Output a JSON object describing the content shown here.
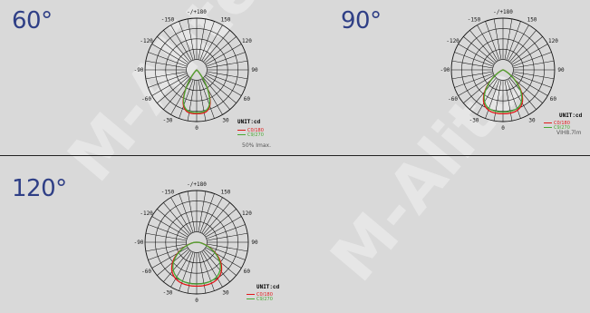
{
  "watermark": "M-Alite",
  "diagrams": [
    {
      "beam": "60°",
      "angle_labels": [
        "-/+180",
        "150",
        "120",
        "90",
        "60",
        "30",
        "0",
        "-30",
        "-60",
        "-90",
        "-120",
        "-150"
      ],
      "unit": "UNIT:cd",
      "legend": [
        "C0/180",
        "C9/270"
      ],
      "note": "50% Imax.",
      "chart_data": {
        "type": "polar",
        "series": [
          {
            "name": "C0/180",
            "color": "#e01818",
            "half_width_deg": 30,
            "max": 1.0
          },
          {
            "name": "C9/270",
            "color": "#49a833",
            "half_width_deg": 30,
            "max": 0.97
          }
        ]
      }
    },
    {
      "beam": "90°",
      "angle_labels": [
        "-/+180",
        "150",
        "120",
        "90",
        "60",
        "30",
        "0",
        "-30",
        "-60",
        "-90",
        "-120",
        "-150"
      ],
      "unit": "UNIT:cd",
      "legend": [
        "C0/180",
        "C9/270"
      ],
      "note": "VIH8.7lm",
      "chart_data": {
        "type": "polar",
        "series": [
          {
            "name": "C0/180",
            "color": "#e01818",
            "half_width_deg": 45,
            "max": 1.0
          },
          {
            "name": "C9/270",
            "color": "#49a833",
            "half_width_deg": 45,
            "max": 0.96
          }
        ]
      }
    },
    {
      "beam": "120°",
      "angle_labels": [
        "-/+180",
        "150",
        "120",
        "90",
        "60",
        "30",
        "0",
        "-30",
        "-60",
        "-90",
        "-120",
        "-150"
      ],
      "unit": "UNIT:cd",
      "legend": [
        "C0/180",
        "C9/270"
      ],
      "note": "",
      "chart_data": {
        "type": "polar",
        "series": [
          {
            "name": "C0/180",
            "color": "#e01818",
            "half_width_deg": 60,
            "max": 1.0
          },
          {
            "name": "C9/270",
            "color": "#49a833",
            "half_width_deg": 60,
            "max": 0.95
          }
        ]
      }
    }
  ]
}
